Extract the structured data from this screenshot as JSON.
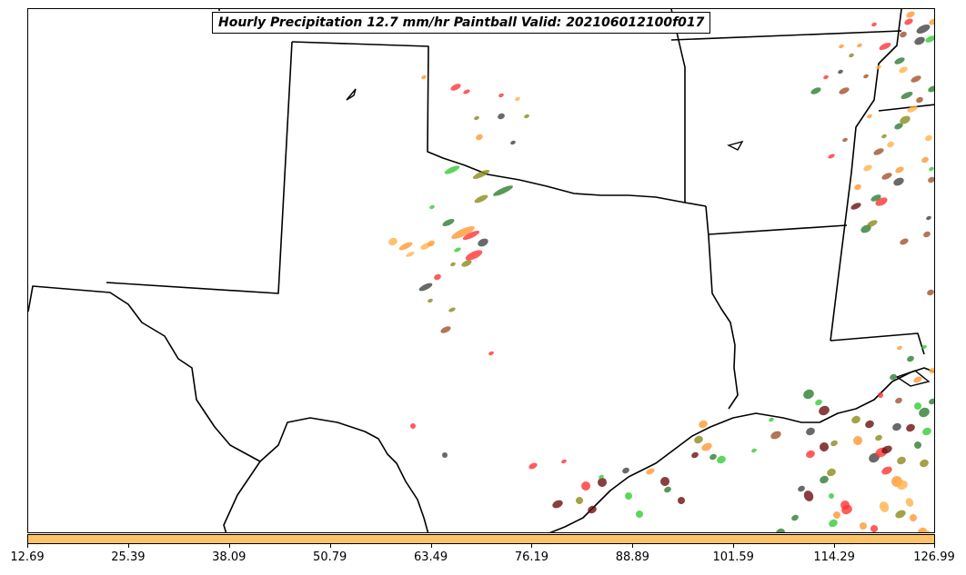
{
  "title": "Hourly Precipitation 12.7 mm/hr Paintball Valid: 202106012100f017",
  "colorbar": {
    "color": "#ffc266",
    "ticks": [
      "12.69",
      "25.39",
      "38.09",
      "50.79",
      "63.49",
      "76.19",
      "88.89",
      "101.59",
      "114.29",
      "126.99"
    ]
  },
  "colors": {
    "red": "#ff3333",
    "orange": "#ff9933",
    "light_orange": "#ffb347",
    "green": "#33cc33",
    "dark_green": "#2e7d32",
    "olive": "#8b8b1a",
    "dark_red": "#6b0f0f",
    "dark_gray": "#444444",
    "brown_red": "#a0522d"
  },
  "map": {
    "region": "Texas / Oklahoma / Louisiana / Gulf of Mexico",
    "boundaries": [
      "state-borders",
      "coastline"
    ]
  }
}
